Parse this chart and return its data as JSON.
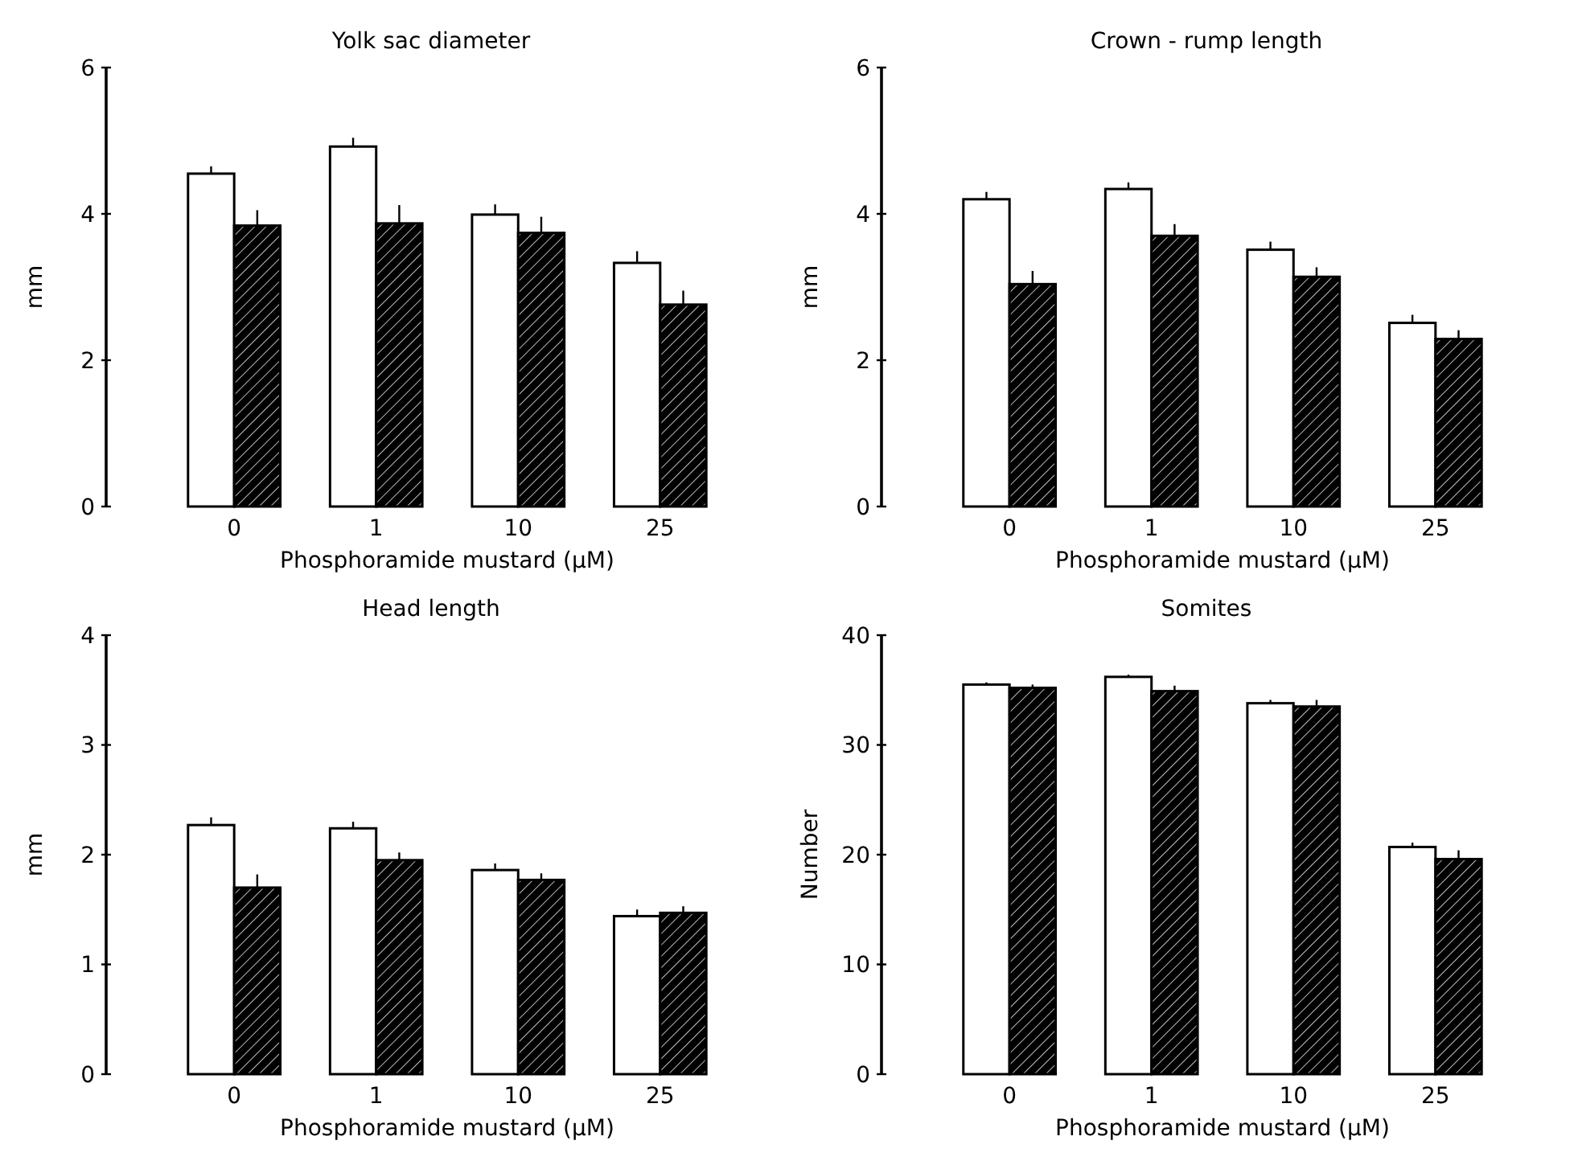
{
  "chart_data": [
    {
      "type": "bar",
      "title": "Yolk sac diameter",
      "xlabel": "Phosphoramide mustard (μM)",
      "ylabel": "mm",
      "categories": [
        "0",
        "1",
        "10",
        "25"
      ],
      "ylim": [
        0,
        6
      ],
      "yticks": [
        0,
        2,
        4,
        6
      ],
      "grid": false,
      "series": [
        {
          "color": "#ffffff",
          "values": [
            4.55,
            4.92,
            3.99,
            3.33
          ],
          "errors": [
            [
              4.55,
              4.65
            ],
            [
              4.92,
              5.04
            ],
            [
              3.99,
              4.13
            ],
            [
              3.33,
              3.49
            ]
          ]
        },
        {
          "color": "#000000",
          "values": [
            3.84,
            3.87,
            3.74,
            2.76
          ],
          "errors": [
            [
              3.84,
              4.05
            ],
            [
              3.87,
              4.12
            ],
            [
              3.74,
              3.96
            ],
            [
              2.76,
              2.95
            ]
          ]
        }
      ]
    },
    {
      "type": "bar",
      "title": "Crown - rump length",
      "xlabel": "Phosphoramide mustard (μM)",
      "ylabel": "mm",
      "categories": [
        "0",
        "1",
        "10",
        "25"
      ],
      "ylim": [
        0,
        6
      ],
      "yticks": [
        0,
        2,
        4,
        6
      ],
      "grid": false,
      "series": [
        {
          "color": "#ffffff",
          "values": [
            4.2,
            4.34,
            3.51,
            2.51
          ],
          "errors": [
            [
              4.2,
              4.3
            ],
            [
              4.34,
              4.43
            ],
            [
              3.51,
              3.62
            ],
            [
              2.51,
              2.62
            ]
          ]
        },
        {
          "color": "#000000",
          "values": [
            3.04,
            3.7,
            3.14,
            2.29
          ],
          "errors": [
            [
              3.04,
              3.22
            ],
            [
              3.7,
              3.86
            ],
            [
              3.14,
              3.27
            ],
            [
              2.29,
              2.41
            ]
          ]
        }
      ]
    },
    {
      "type": "bar",
      "title": "Head length",
      "xlabel": "Phosphoramide mustard (μM)",
      "ylabel": "mm",
      "categories": [
        "0",
        "1",
        "10",
        "25"
      ],
      "ylim": [
        0,
        4
      ],
      "yticks": [
        0,
        1,
        2,
        3,
        4
      ],
      "grid": false,
      "series": [
        {
          "color": "#ffffff",
          "values": [
            2.27,
            2.24,
            1.86,
            1.44
          ],
          "errors": [
            [
              2.27,
              2.34
            ],
            [
              2.24,
              2.3
            ],
            [
              1.86,
              1.92
            ],
            [
              1.44,
              1.5
            ]
          ]
        },
        {
          "color": "#000000",
          "values": [
            1.7,
            1.95,
            1.77,
            1.47
          ],
          "errors": [
            [
              1.7,
              1.82
            ],
            [
              1.95,
              2.02
            ],
            [
              1.77,
              1.83
            ],
            [
              1.47,
              1.53
            ]
          ]
        }
      ]
    },
    {
      "type": "bar",
      "title": "Somites",
      "xlabel": "Phosphoramide mustard (μM)",
      "ylabel": "Number",
      "categories": [
        "0",
        "1",
        "10",
        "25"
      ],
      "ylim": [
        0,
        40
      ],
      "yticks": [
        0,
        10,
        20,
        30,
        40
      ],
      "grid": false,
      "series": [
        {
          "color": "#ffffff",
          "values": [
            35.5,
            36.2,
            33.8,
            20.7
          ],
          "errors": [
            [
              35.5,
              35.7
            ],
            [
              36.2,
              36.4
            ],
            [
              33.8,
              34.1
            ],
            [
              20.7,
              21.1
            ]
          ]
        },
        {
          "color": "#000000",
          "values": [
            35.2,
            34.9,
            33.5,
            19.6
          ],
          "errors": [
            [
              35.2,
              35.5
            ],
            [
              34.9,
              35.4
            ],
            [
              33.5,
              34.1
            ],
            [
              19.6,
              20.4
            ]
          ]
        }
      ]
    }
  ]
}
